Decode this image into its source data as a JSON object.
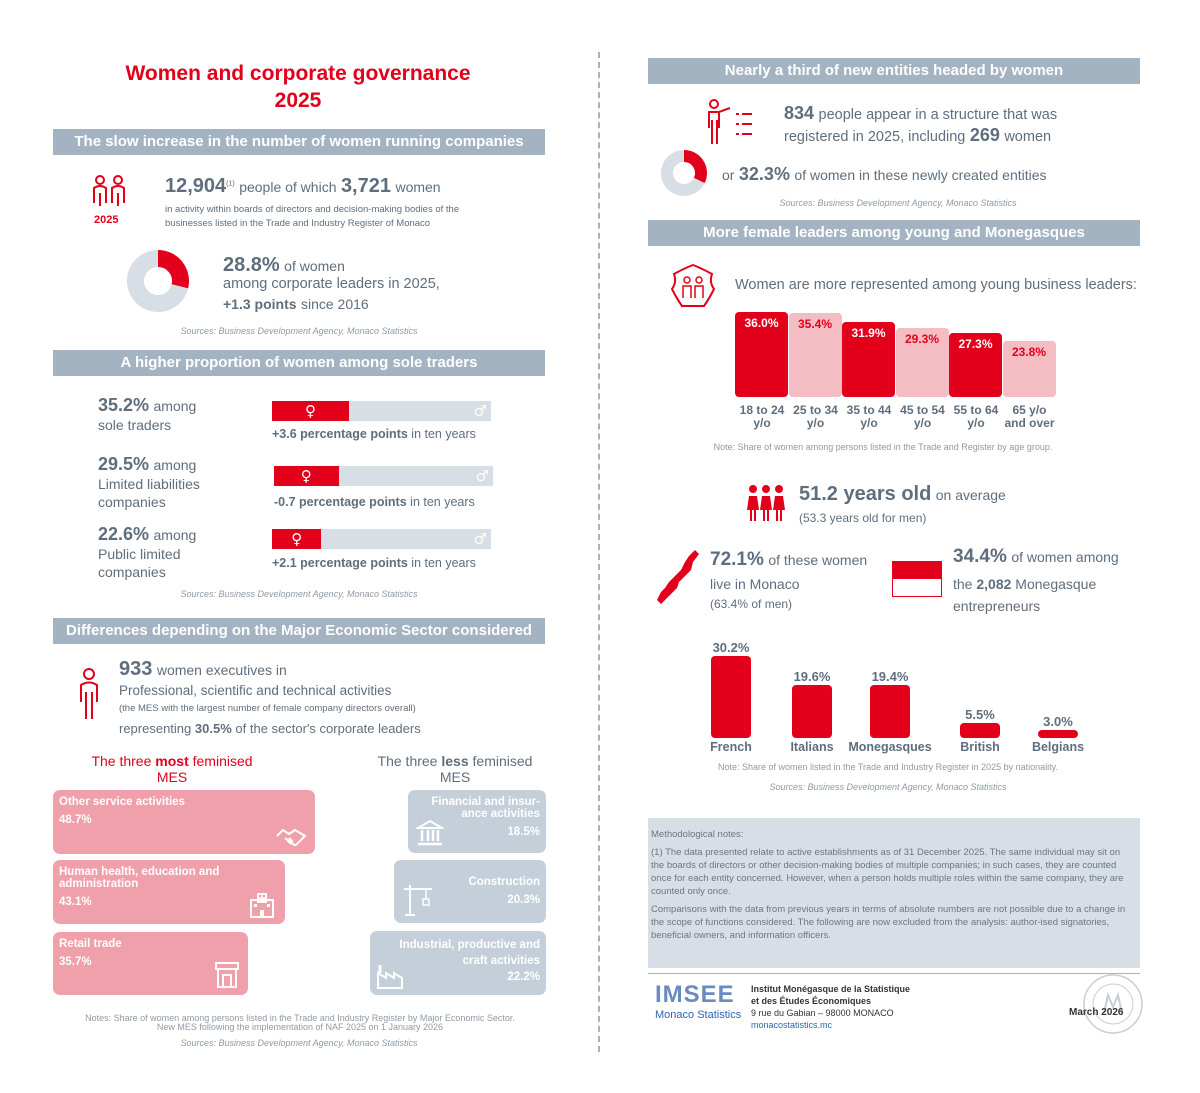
{
  "title": {
    "line1": "Women and corporate governance",
    "line2": "2025"
  },
  "s1": {
    "banner": "The slow increase in the number of women running companies",
    "year_label": "2025",
    "total": "12,904",
    "note_ref": "(1)",
    "text1": "people of which",
    "women": "3,721",
    "text2": "women",
    "desc1": "in activity within boards of directors and decision-making bodies of the",
    "desc2": "businesses listed in the Trade and Industry Register of Monaco",
    "pct": "28.8%",
    "pct_text": "of women",
    "line2": "among corporate leaders in 2025,",
    "points": "+1.3 points",
    "since": "since 2016",
    "source": "Sources: Business Development Agency, Monaco Statistics"
  },
  "s2": {
    "banner": "A higher proportion of women among sole traders",
    "items": [
      {
        "pct": "35.2%",
        "among": "among",
        "label1": "sole traders",
        "label2": "",
        "label3": "",
        "change": "+3.6 percentage points",
        "suffix": "in ten years",
        "share": 0.352
      },
      {
        "pct": "29.5%",
        "among": "among",
        "label1": "Limited liabilities",
        "label2": "companies",
        "label3": "",
        "change": "-0.7 percentage points",
        "suffix": "in ten years",
        "share": 0.295
      },
      {
        "pct": "22.6%",
        "among": "among",
        "label1": "Public limited",
        "label2": "companies",
        "label3": "",
        "change": "+2.1 percentage points",
        "suffix": "in ten years",
        "share": 0.226
      }
    ],
    "female_symbol": "♀",
    "male_symbol": "♂",
    "source": "Sources: Business Development Agency, Monaco Statistics"
  },
  "s3": {
    "banner": "Differences depending on the Major Economic Sector considered",
    "count": "933",
    "text1": "women executives in",
    "text2": "Professional, scientific and technical activities",
    "text3": "(the MES with the largest number of female company directors overall)",
    "text4a": "representing",
    "text4b": "30.5%",
    "text4c": "of the sector's corporate leaders",
    "most_a": "The three",
    "most_b": "most",
    "most_c": "feminised",
    "most_d": "MES",
    "less_a": "The three",
    "less_b": "less",
    "less_c": "feminised",
    "less_d": "MES",
    "most": [
      {
        "name": "Other service activities",
        "value": "48.7%"
      },
      {
        "name": "Human health, education and administration",
        "value": "43.1%"
      },
      {
        "name": "Retail trade",
        "value": "35.7%"
      }
    ],
    "less": [
      {
        "name": "Financial and insur-ance activities",
        "value": "18.5%"
      },
      {
        "name": "Construction",
        "value": "20.3%"
      },
      {
        "name": "Industrial, productive and craft activities",
        "value": "22.2%"
      }
    ],
    "notes1": "Notes: Share of women among persons listed in the Trade and Industry Register by Major Economic Sector.",
    "notes2": "New MES following the implementation of NAF 2025 on 1 January 2026",
    "source": "Sources: Business Development Agency, Monaco Statistics"
  },
  "s4": {
    "banner": "Nearly a third of new entities headed by women",
    "count": "834",
    "text1": "people appear in a structure that was",
    "text2": "registered in 2025, including",
    "women": "269",
    "text3": "women",
    "or": "or",
    "pct": "32.3%",
    "text4": "of women in these newly created entities",
    "source": "Sources: Business Development Agency, Monaco Statistics"
  },
  "s5": {
    "banner": "More female leaders among young and Monegasques",
    "intro": "Women are more represented among young business leaders:",
    "note": "Note: Share of women among persons listed in the Trade and Register by age group.",
    "avg": "51.2 years old",
    "avg_text": "on average",
    "men_avg": "(53.3 years old for men)",
    "monaco_pct": "72.1%",
    "monaco_t1": "of these women",
    "monaco_t2": "live in Monaco",
    "monaco_men": "(63.4% of men)",
    "mone_pct": "34.4%",
    "mone_t1": "of women among",
    "mone_t2a": "the",
    "mone_count": "2,082",
    "mone_t2b": "Monegasque",
    "mone_t3": "entrepreneurs",
    "nat_note": "Note: Share of women listed in the Trade and Industry Register in 2025 by nationality.",
    "source": "Sources: Business Development Agency, Monaco Statistics"
  },
  "chart_data": [
    {
      "type": "pie",
      "categories": [
        "Women",
        "Men"
      ],
      "values": [
        28.8,
        71.2
      ],
      "colors": [
        "#e2001a",
        "#d7dee5"
      ]
    },
    {
      "type": "pie",
      "categories": [
        "Women",
        "Men"
      ],
      "values": [
        32.3,
        67.7
      ],
      "colors": [
        "#e2001a",
        "#d7dee5"
      ]
    },
    {
      "type": "bar",
      "categories": [
        "18 to 24 y/o",
        "25 to 34 y/o",
        "35 to 44 y/o",
        "45 to 54 y/o",
        "55 to 64 y/o",
        "65 y/o and over"
      ],
      "values": [
        36.0,
        35.4,
        31.9,
        29.3,
        27.3,
        23.8
      ],
      "labels": [
        "36.0%",
        "35.4%",
        "31.9%",
        "29.3%",
        "27.3%",
        "23.8%"
      ],
      "colors": [
        "#e2001a",
        "#f4bcc3",
        "#e2001a",
        "#f4bcc3",
        "#e2001a",
        "#f4bcc3"
      ],
      "ylim": [
        0,
        36.0
      ]
    },
    {
      "type": "bar",
      "categories": [
        "French",
        "Italians",
        "Monegasques",
        "British",
        "Belgians"
      ],
      "values": [
        30.2,
        19.6,
        19.4,
        5.5,
        3.0
      ],
      "labels": [
        "30.2%",
        "19.6%",
        "19.4%",
        "5.5%",
        "3.0%"
      ],
      "ylim": [
        0,
        30.2
      ]
    }
  ],
  "method": {
    "title": "Methodological notes:",
    "p1": "(1) The data presented relate to active establishments as of 31 December 2025. The same individual may sit on the boards of directors or other decision-making bodies of multiple companies; in such cases, they are counted once for each entity concerned. However, when a person holds multiple roles within the same company, they are counted only once.",
    "p2": "Comparisons with the data from previous years in terms of absolute numbers are not possible due to a change in the scope of functions considered. The following are now excluded from the analysis: author-ised signatories, beneficial owners, and information officers."
  },
  "footer": {
    "logo_a": "IMSEE",
    "logo_b": "Monaco Statistics",
    "inst1": "Institut Monégasque de la Statistique",
    "inst2": "et des Études Économiques",
    "address": "9 rue du Gabian – 98000 MONACO",
    "url": "monacostatistics.mc",
    "date": "March 2026"
  }
}
